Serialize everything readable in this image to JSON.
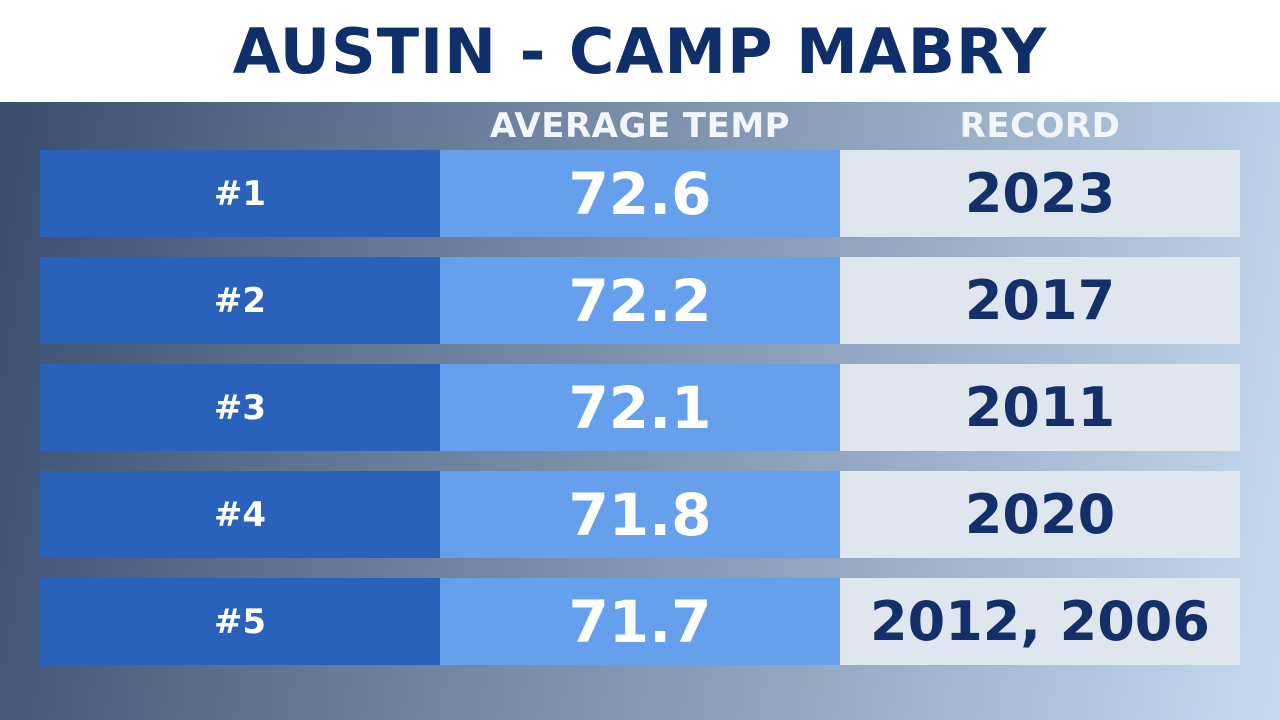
{
  "title": "AUSTIN - CAMP MABRY",
  "chart_data": {
    "type": "table",
    "title": "AUSTIN - CAMP MABRY",
    "columns": [
      "",
      "AVERAGE TEMP",
      "RECORD"
    ],
    "rows": [
      {
        "rank": "#1",
        "average_temp": "72.6",
        "record": "2023"
      },
      {
        "rank": "#2",
        "average_temp": "72.2",
        "record": "2017"
      },
      {
        "rank": "#3",
        "average_temp": "72.1",
        "record": "2011"
      },
      {
        "rank": "#4",
        "average_temp": "71.8",
        "record": "2020"
      },
      {
        "rank": "#5",
        "average_temp": "71.7",
        "record": "2012, 2006"
      }
    ]
  },
  "colors": {
    "title_text": "#0f2f6b",
    "rank_cell": "#2a61bb",
    "temp_cell": "#66a0ec",
    "record_cell": "#dfe6ee",
    "record_text": "#13306a"
  }
}
